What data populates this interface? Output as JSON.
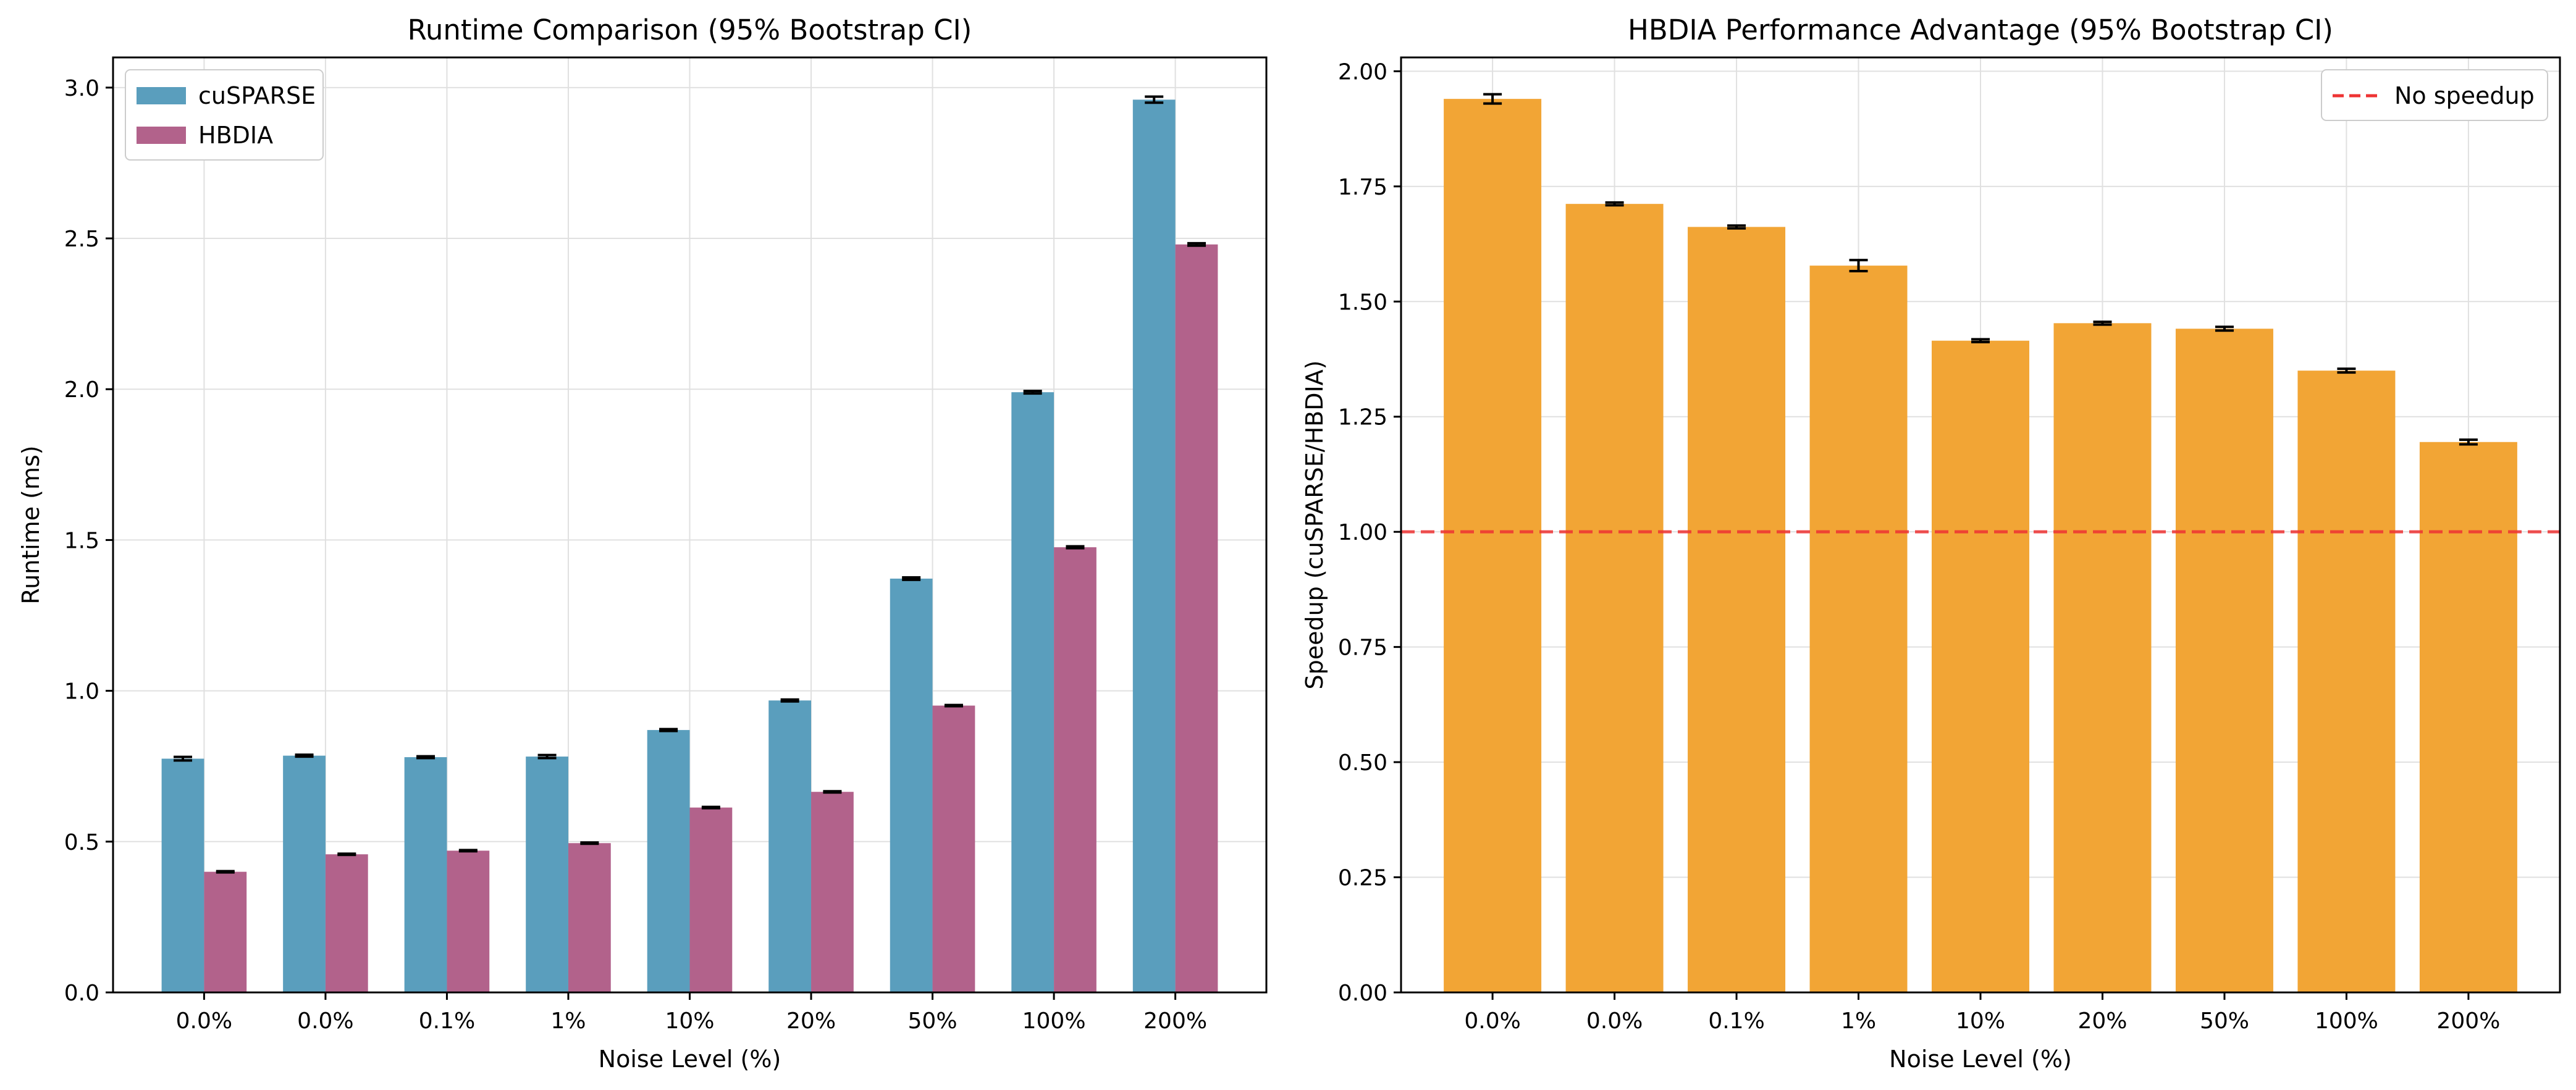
{
  "chart_data": [
    {
      "type": "bar",
      "title": "Runtime Comparison (95% Bootstrap CI)",
      "xlabel": "Noise Level (%)",
      "ylabel": "Runtime (ms)",
      "ylim": [
        0,
        3.1
      ],
      "yticks": [
        "0.0",
        "0.5",
        "1.0",
        "1.5",
        "2.0",
        "2.5",
        "3.0"
      ],
      "categories": [
        "0.0%",
        "0.0%",
        "0.1%",
        "1%",
        "10%",
        "20%",
        "50%",
        "100%",
        "200%"
      ],
      "grid": true,
      "legend_position": "top-left",
      "series": [
        {
          "name": "cuSPARSE",
          "color": "#5a9ebd",
          "values": [
            0.775,
            0.785,
            0.78,
            0.782,
            0.87,
            0.968,
            1.372,
            1.99,
            2.96
          ],
          "ci": [
            0.006,
            0.003,
            0.003,
            0.005,
            0.003,
            0.003,
            0.004,
            0.004,
            0.01
          ]
        },
        {
          "name": "HBDIA",
          "color": "#b2628b",
          "values": [
            0.4,
            0.458,
            0.47,
            0.495,
            0.613,
            0.665,
            0.951,
            1.476,
            2.48
          ],
          "ci": [
            0.002,
            0.002,
            0.002,
            0.002,
            0.002,
            0.002,
            0.002,
            0.003,
            0.004
          ]
        }
      ]
    },
    {
      "type": "bar",
      "title": "HBDIA Performance Advantage (95% Bootstrap CI)",
      "xlabel": "Noise Level (%)",
      "ylabel": "Speedup (cuSPARSE/HBDIA)",
      "ylim": [
        0,
        2.03
      ],
      "yticks": [
        "0.00",
        "0.25",
        "0.50",
        "0.75",
        "1.00",
        "1.25",
        "1.50",
        "1.75",
        "2.00"
      ],
      "categories": [
        "0.0%",
        "0.0%",
        "0.1%",
        "1%",
        "10%",
        "20%",
        "50%",
        "100%",
        "200%"
      ],
      "grid": true,
      "legend_position": "top-right",
      "series": [
        {
          "name": "",
          "color": "#f2a535",
          "values": [
            1.94,
            1.712,
            1.662,
            1.578,
            1.415,
            1.453,
            1.441,
            1.35,
            1.195
          ],
          "ci": [
            0.01,
            0.003,
            0.003,
            0.012,
            0.003,
            0.003,
            0.004,
            0.004,
            0.005
          ]
        }
      ],
      "reference_line": {
        "value": 1.0,
        "label": "No speedup",
        "color": "#ee3333",
        "style": "dashed"
      }
    }
  ]
}
